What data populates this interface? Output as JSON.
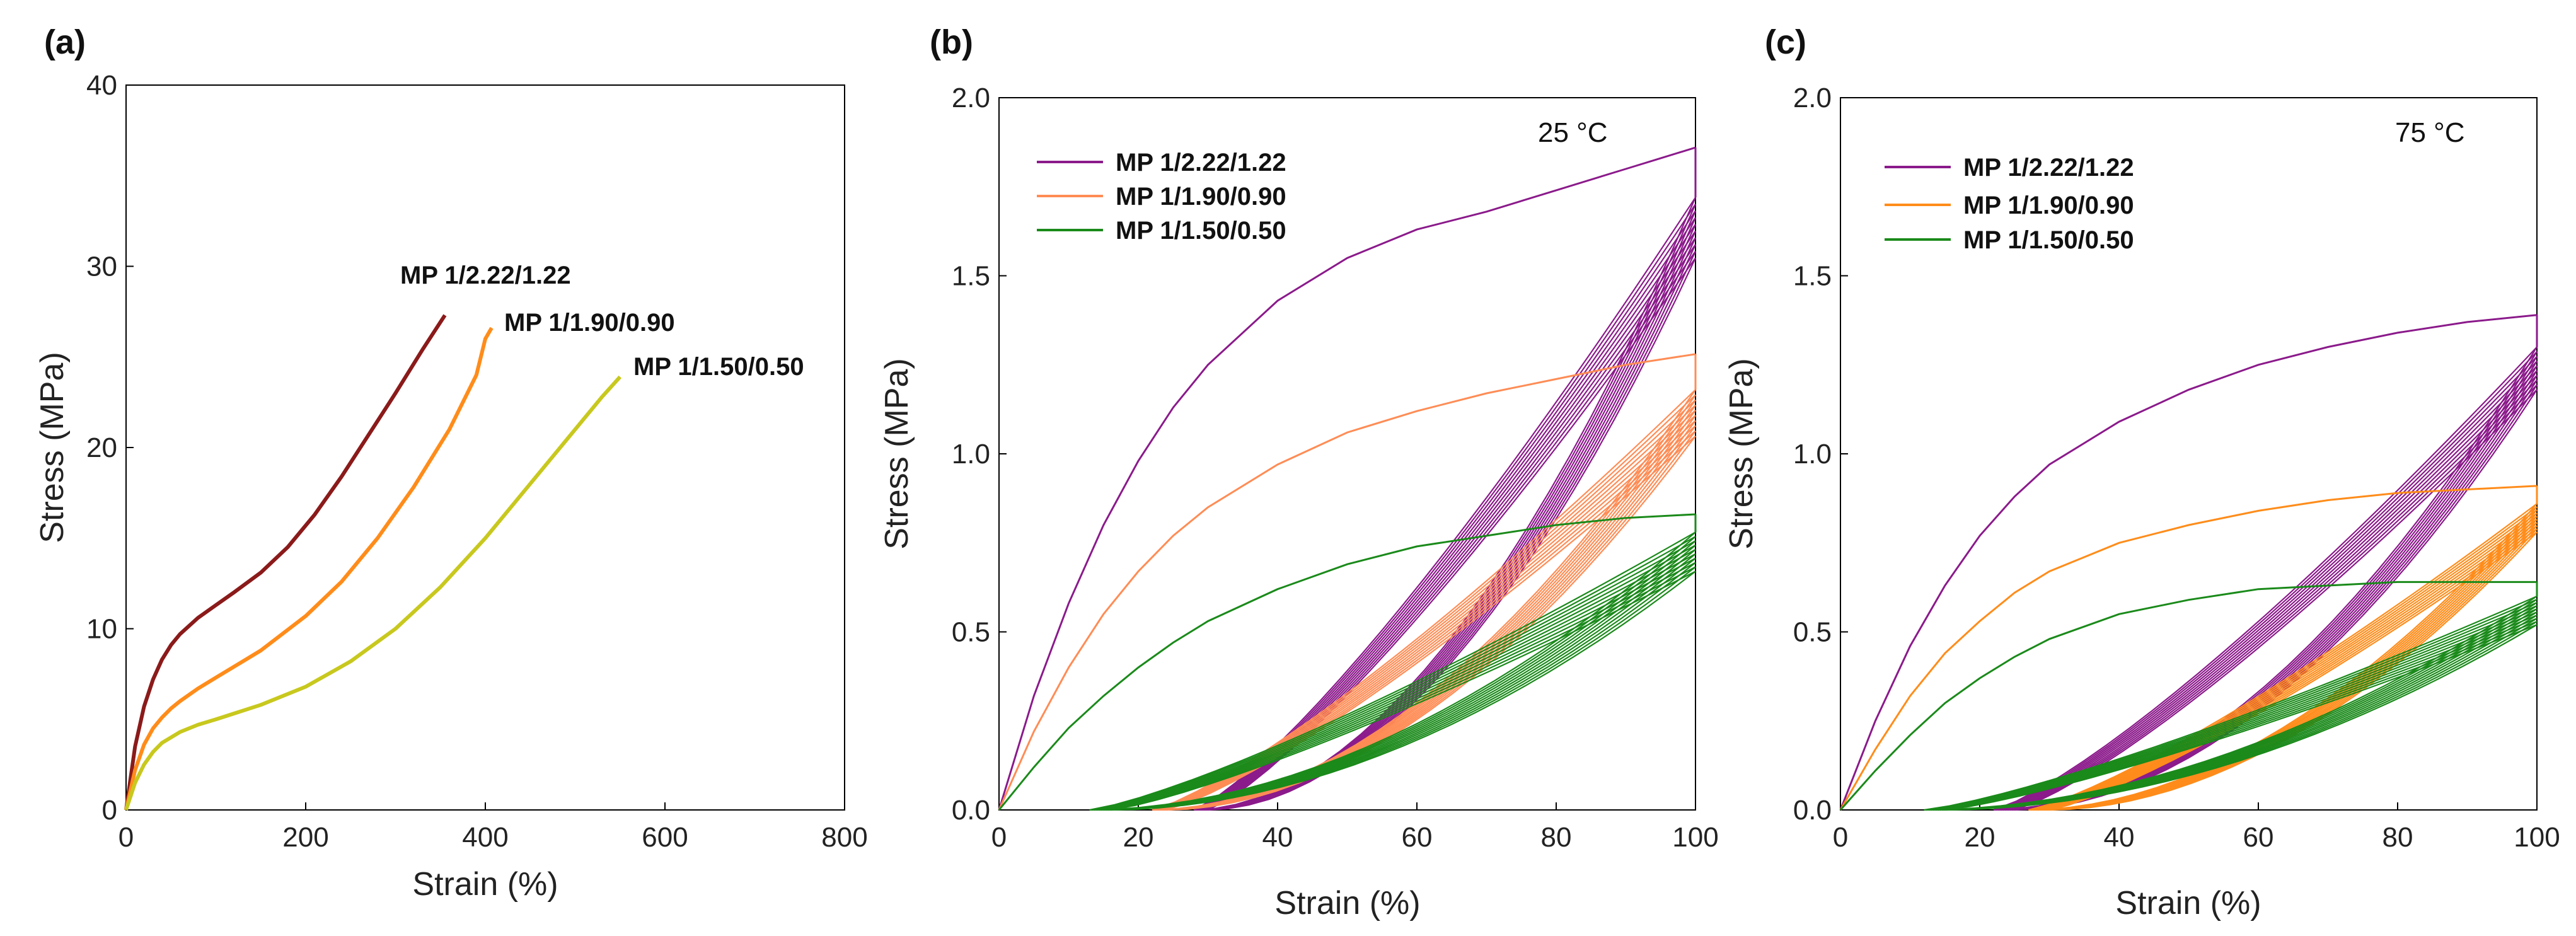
{
  "chart_data": [
    {
      "panel": "(a)",
      "type": "line",
      "xlabel": "Strain (%)",
      "ylabel": "Stress (MPa)",
      "xlim": [
        0,
        800
      ],
      "ylim": [
        0,
        40
      ],
      "xticks": [
        "0",
        "200",
        "400",
        "600",
        "800"
      ],
      "yticks": [
        "0",
        "10",
        "20",
        "30",
        "40"
      ],
      "legend": "inline-labels",
      "series": [
        {
          "name": "MP 1/2.22/1.22",
          "color": "#8b1a1a",
          "x": [
            0,
            10,
            20,
            30,
            40,
            50,
            60,
            80,
            100,
            120,
            150,
            180,
            210,
            240,
            270,
            300,
            330,
            355
          ],
          "y": [
            0,
            3.5,
            5.7,
            7.2,
            8.3,
            9.1,
            9.7,
            10.6,
            11.3,
            12.0,
            13.1,
            14.5,
            16.3,
            18.4,
            20.7,
            23.0,
            25.4,
            27.3
          ]
        },
        {
          "name": "MP 1/1.90/0.90",
          "color": "#ff8c1a",
          "x": [
            0,
            10,
            20,
            30,
            40,
            50,
            60,
            80,
            100,
            150,
            200,
            240,
            280,
            320,
            360,
            390,
            400,
            407
          ],
          "y": [
            0,
            2.2,
            3.6,
            4.5,
            5.1,
            5.6,
            6.0,
            6.7,
            7.3,
            8.8,
            10.7,
            12.6,
            15.0,
            17.8,
            21.0,
            24.0,
            26.0,
            26.6
          ]
        },
        {
          "name": "MP 1/1.50/0.50",
          "color": "#c8c81e",
          "x": [
            0,
            10,
            20,
            30,
            40,
            60,
            80,
            100,
            150,
            200,
            250,
            300,
            350,
            400,
            450,
            500,
            530,
            550
          ],
          "y": [
            0,
            1.5,
            2.5,
            3.2,
            3.7,
            4.3,
            4.7,
            5.0,
            5.8,
            6.8,
            8.2,
            10.0,
            12.3,
            15.0,
            18.0,
            21.0,
            22.8,
            23.9
          ]
        }
      ]
    },
    {
      "panel": "(b)",
      "type": "line",
      "annotation": "25 °C",
      "xlabel": "Strain (%)",
      "ylabel": "Stress (MPa)",
      "xlim": [
        0,
        100
      ],
      "ylim": [
        0,
        2.0
      ],
      "xticks": [
        "0",
        "20",
        "40",
        "60",
        "80",
        "100"
      ],
      "yticks": [
        "0.0",
        "0.5",
        "1.0",
        "1.5",
        "2.0"
      ],
      "legend": "top-left",
      "series": [
        {
          "name": "MP 1/2.22/1.22",
          "color": "#8b1a8b",
          "loading_x": [
            0,
            5,
            10,
            15,
            20,
            25,
            30,
            40,
            50,
            60,
            70,
            80,
            90,
            100
          ],
          "loading_y": [
            0,
            0.32,
            0.58,
            0.8,
            0.98,
            1.13,
            1.25,
            1.43,
            1.55,
            1.63,
            1.68,
            1.74,
            1.8,
            1.86
          ],
          "unload_x0": 28,
          "unload_peak": 1.72,
          "cycles": 10,
          "cycle_top_min": 1.55,
          "residual_max": 30
        },
        {
          "name": "MP 1/1.90/0.90",
          "color": "#ff8c55",
          "loading_x": [
            0,
            5,
            10,
            15,
            20,
            25,
            30,
            40,
            50,
            60,
            70,
            80,
            90,
            100
          ],
          "loading_y": [
            0,
            0.22,
            0.4,
            0.55,
            0.67,
            0.77,
            0.85,
            0.97,
            1.06,
            1.12,
            1.17,
            1.21,
            1.25,
            1.28
          ],
          "unload_x0": 22,
          "unload_peak": 1.18,
          "cycles": 10,
          "cycle_top_min": 1.05,
          "residual_max": 24
        },
        {
          "name": "MP 1/1.50/0.50",
          "color": "#1a8a1a",
          "loading_x": [
            0,
            5,
            10,
            15,
            20,
            25,
            30,
            40,
            50,
            60,
            70,
            80,
            90,
            100
          ],
          "loading_y": [
            0,
            0.12,
            0.23,
            0.32,
            0.4,
            0.47,
            0.53,
            0.62,
            0.69,
            0.74,
            0.77,
            0.8,
            0.82,
            0.83
          ],
          "unload_x0": 13,
          "unload_peak": 0.78,
          "cycles": 10,
          "cycle_top_min": 0.67,
          "residual_max": 16
        }
      ]
    },
    {
      "panel": "(c)",
      "type": "line",
      "annotation": "75 °C",
      "xlabel": "Strain (%)",
      "ylabel": "Stress (MPa)",
      "xlim": [
        0,
        100
      ],
      "ylim": [
        0,
        2.0
      ],
      "xticks": [
        "0",
        "20",
        "40",
        "60",
        "80",
        "100"
      ],
      "yticks": [
        "0.0",
        "0.5",
        "1.0",
        "1.5",
        "2.0"
      ],
      "legend": "top-left",
      "series": [
        {
          "name": "MP 1/2.22/1.22",
          "color": "#8b1a8b",
          "loading_x": [
            0,
            5,
            10,
            15,
            20,
            25,
            30,
            40,
            50,
            60,
            70,
            80,
            90,
            100
          ],
          "loading_y": [
            0,
            0.25,
            0.46,
            0.63,
            0.77,
            0.88,
            0.97,
            1.09,
            1.18,
            1.25,
            1.3,
            1.34,
            1.37,
            1.39
          ],
          "unload_x0": 22,
          "unload_peak": 1.3,
          "cycles": 10,
          "cycle_top_min": 1.18,
          "residual_max": 25
        },
        {
          "name": "MP 1/1.90/0.90",
          "color": "#ff8c1a",
          "loading_x": [
            0,
            5,
            10,
            15,
            20,
            25,
            30,
            40,
            50,
            60,
            70,
            80,
            90,
            100
          ],
          "loading_y": [
            0,
            0.17,
            0.32,
            0.44,
            0.53,
            0.61,
            0.67,
            0.75,
            0.8,
            0.84,
            0.87,
            0.89,
            0.9,
            0.91
          ],
          "unload_x0": 27,
          "unload_peak": 0.86,
          "cycles": 10,
          "cycle_top_min": 0.78,
          "residual_max": 30
        },
        {
          "name": "MP 1/1.50/0.50",
          "color": "#1a8a1a",
          "loading_x": [
            0,
            5,
            10,
            15,
            20,
            25,
            30,
            40,
            50,
            60,
            70,
            80,
            90,
            100
          ],
          "loading_y": [
            0,
            0.11,
            0.21,
            0.3,
            0.37,
            0.43,
            0.48,
            0.55,
            0.59,
            0.62,
            0.63,
            0.64,
            0.64,
            0.64
          ],
          "unload_x0": 12,
          "unload_peak": 0.6,
          "cycles": 10,
          "cycle_top_min": 0.52,
          "residual_max": 15
        }
      ]
    }
  ]
}
